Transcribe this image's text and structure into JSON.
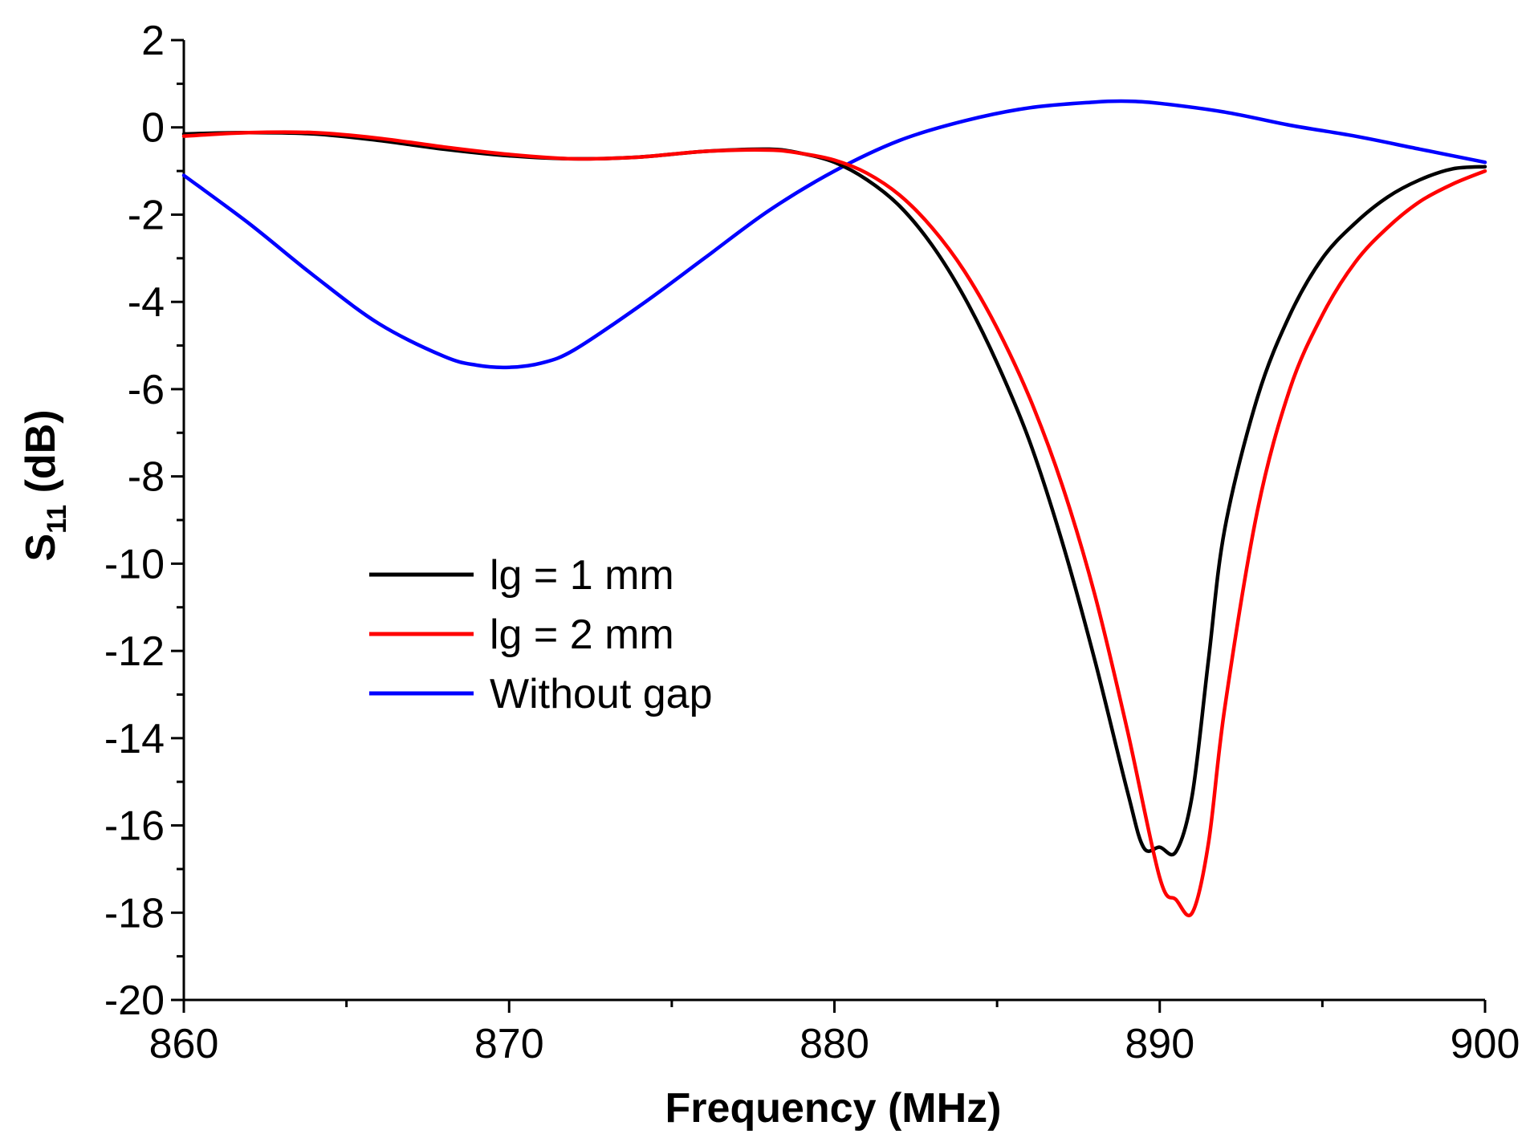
{
  "chart_data": {
    "type": "line",
    "title": "",
    "xlabel": "Frequency (MHz)",
    "ylabel": {
      "base": "S",
      "sub": "11",
      "suffix": " (dB)"
    },
    "xlim": [
      860,
      900
    ],
    "ylim": [
      -20,
      2
    ],
    "xticks": [
      860,
      870,
      880,
      890,
      900
    ],
    "yticks": [
      2,
      0,
      -2,
      -4,
      -6,
      -8,
      -10,
      -12,
      -14,
      -16,
      -18,
      -20
    ],
    "xtick_labels": [
      "860",
      "870",
      "880",
      "890",
      "900"
    ],
    "ytick_labels": [
      "2",
      "0",
      "-2",
      "-4",
      "-6",
      "-8",
      "-10",
      "-12",
      "-14",
      "-16",
      "-18",
      "-20"
    ],
    "legend_position": "center-left",
    "series": [
      {
        "name": "lg = 1 mm",
        "color": "#000000",
        "x": [
          860,
          862,
          864,
          866,
          868,
          870,
          872,
          874,
          876,
          878,
          879,
          880,
          881,
          882,
          883,
          884,
          885,
          886,
          887,
          888,
          889,
          889.5,
          890,
          890.5,
          891,
          891.5,
          892,
          893,
          894,
          895,
          896,
          897,
          898,
          899,
          900
        ],
        "y": [
          -0.15,
          -0.12,
          -0.15,
          -0.3,
          -0.5,
          -0.65,
          -0.72,
          -0.68,
          -0.55,
          -0.5,
          -0.6,
          -0.8,
          -1.2,
          -1.8,
          -2.7,
          -3.9,
          -5.4,
          -7.2,
          -9.5,
          -12.2,
          -15.2,
          -16.5,
          -16.5,
          -16.6,
          -15.3,
          -12.2,
          -9.2,
          -6.2,
          -4.3,
          -3.0,
          -2.2,
          -1.6,
          -1.2,
          -0.95,
          -0.9
        ]
      },
      {
        "name": "lg = 2 mm",
        "color": "#ff0000",
        "x": [
          860,
          862,
          864,
          866,
          868,
          870,
          872,
          874,
          876,
          878,
          879,
          880,
          881,
          882,
          883,
          884,
          885,
          886,
          887,
          888,
          889,
          890,
          890.5,
          891,
          891.5,
          892,
          893,
          894,
          895,
          896,
          897,
          898,
          899,
          900
        ],
        "y": [
          -0.2,
          -0.12,
          -0.12,
          -0.25,
          -0.45,
          -0.62,
          -0.72,
          -0.68,
          -0.55,
          -0.52,
          -0.6,
          -0.75,
          -1.05,
          -1.55,
          -2.3,
          -3.3,
          -4.6,
          -6.2,
          -8.2,
          -10.7,
          -13.8,
          -17.2,
          -17.7,
          -18.0,
          -16.4,
          -13.3,
          -8.8,
          -6.0,
          -4.3,
          -3.1,
          -2.3,
          -1.7,
          -1.3,
          -1.0
        ]
      },
      {
        "name": "Without gap",
        "color": "#0000ff",
        "x": [
          860,
          862,
          864,
          866,
          868,
          869,
          870,
          871,
          872,
          874,
          876,
          878,
          880,
          882,
          884,
          886,
          888,
          889,
          890,
          892,
          894,
          896,
          898,
          900
        ],
        "y": [
          -1.1,
          -2.2,
          -3.4,
          -4.5,
          -5.25,
          -5.45,
          -5.5,
          -5.4,
          -5.1,
          -4.1,
          -3.0,
          -1.9,
          -1.0,
          -0.3,
          0.15,
          0.45,
          0.58,
          0.6,
          0.55,
          0.35,
          0.05,
          -0.2,
          -0.5,
          -0.8
        ]
      }
    ]
  }
}
